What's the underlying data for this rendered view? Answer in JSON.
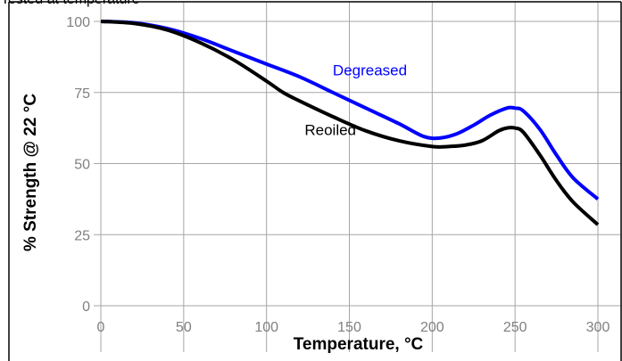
{
  "header": {
    "caption": "Tested at temperature"
  },
  "chart_data": {
    "type": "line",
    "xlabel": "Temperature, °C",
    "ylabel": "% Strength @ 22 °C",
    "xlim": [
      0,
      300
    ],
    "ylim": [
      0,
      100
    ],
    "xticks": [
      0,
      50,
      100,
      150,
      200,
      250,
      300
    ],
    "yticks": [
      0,
      25,
      50,
      75,
      100
    ],
    "grid": true,
    "legend": "inline labels",
    "series": [
      {
        "name": "Degreased",
        "color": "#0000ff",
        "x": [
          0,
          20,
          40,
          60,
          80,
          100,
          120,
          140,
          160,
          180,
          195,
          205,
          215,
          225,
          235,
          245,
          250,
          255,
          265,
          275,
          285,
          300
        ],
        "y": [
          100,
          99.5,
          97.5,
          94,
          89.5,
          85,
          80.5,
          75,
          69.5,
          64,
          59.5,
          59,
          60.5,
          63.5,
          67,
          69.5,
          69.5,
          68.5,
          62,
          53,
          45,
          37.5
        ]
      },
      {
        "name": "Reoiled",
        "color": "#000000",
        "x": [
          0,
          20,
          40,
          60,
          80,
          100,
          110,
          120,
          140,
          160,
          180,
          200,
          210,
          220,
          230,
          240,
          245,
          250,
          255,
          265,
          275,
          285,
          300
        ],
        "y": [
          100,
          99.3,
          97,
          92.5,
          86.5,
          79,
          75,
          72,
          66.5,
          61.5,
          58,
          56,
          56,
          56.5,
          58,
          61.5,
          62.5,
          62.5,
          61,
          53,
          44,
          36.5,
          28.5
        ]
      }
    ],
    "annotations": [
      {
        "text": "Degreased",
        "x": 140,
        "y": 81,
        "color": "#0000ff"
      },
      {
        "text": "Reoiled",
        "x": 123,
        "y": 60,
        "color": "#000000"
      }
    ]
  }
}
